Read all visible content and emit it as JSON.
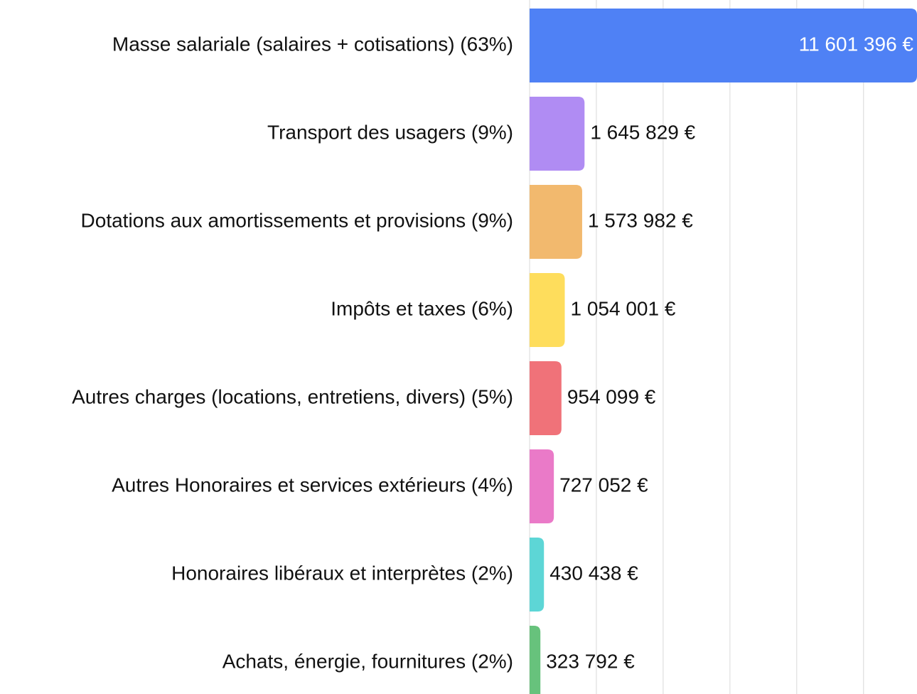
{
  "chart_data": {
    "type": "hbar",
    "categories": [
      "Masse salariale (salaires + cotisations) (63%)",
      "Transport des usagers (9%)",
      "Dotations aux amortissements et provisions (9%)",
      "Impôts et taxes (6%)",
      "Autres charges (locations, entretiens, divers) (5%)",
      "Autres Honoraires et services extérieurs (4%)",
      "Honoraires libéraux et interprètes (2%)",
      "Achats, énergie, fournitures (2%)"
    ],
    "values": [
      11601396,
      1645829,
      1573982,
      1054001,
      954099,
      727052,
      430438,
      323792
    ],
    "value_labels": [
      "11 601 396 €",
      "1 645 829 €",
      "1 573 982 €",
      "1 054 001 €",
      "954 099 €",
      "727 052 €",
      "430 438 €",
      "323 792 €"
    ],
    "colors": [
      "#4f81f5",
      "#b08cf3",
      "#f2b96e",
      "#fedd5c",
      "#f07279",
      "#ea7ac8",
      "#5dd6d6",
      "#67c27c"
    ],
    "xlim": [
      0,
      11601396
    ],
    "xticks": [
      0,
      2000000,
      4000000,
      6000000,
      8000000,
      10000000
    ],
    "grid": true
  }
}
